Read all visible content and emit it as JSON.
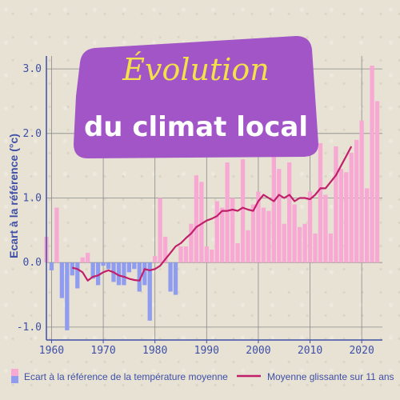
{
  "title_line1": "Évolution",
  "title_line2": "du climat local",
  "colors": {
    "axis": "#3f4fa8",
    "grid": "#8a8a8a",
    "positive_bar": "#f7a8d3",
    "negative_bar": "#8f9cf0",
    "rolling_line": "#c21f6a",
    "title_bg": "#a155c7",
    "title_top": "#f3e14a",
    "title_bottom": "#ffffff"
  },
  "legend": {
    "bars_label": "Ecart à la référence de la température moyenne",
    "line_label": "Moyenne glissante sur 11 ans"
  },
  "chart_data": {
    "type": "bar",
    "title": "Évolution du climat local",
    "xlabel": "",
    "ylabel": "Ecart à la référence (°c)",
    "xlim": [
      1959,
      2024
    ],
    "ylim": [
      -1.2,
      3.2
    ],
    "yticks": [
      -1.0,
      0.0,
      1.0,
      2.0,
      3.0
    ],
    "ytick_labels": [
      "-1.0",
      "0.0",
      "1.0",
      "2.0",
      "3.0"
    ],
    "xticks": [
      1960,
      1970,
      1980,
      1990,
      2000,
      2010,
      2020
    ],
    "x": [
      1959,
      1960,
      1961,
      1962,
      1963,
      1964,
      1965,
      1966,
      1967,
      1968,
      1969,
      1970,
      1971,
      1972,
      1973,
      1974,
      1975,
      1976,
      1977,
      1978,
      1979,
      1980,
      1981,
      1982,
      1983,
      1984,
      1985,
      1986,
      1987,
      1988,
      1989,
      1990,
      1991,
      1992,
      1993,
      1994,
      1995,
      1996,
      1997,
      1998,
      1999,
      2000,
      2001,
      2002,
      2003,
      2004,
      2005,
      2006,
      2007,
      2008,
      2009,
      2010,
      2011,
      2012,
      2013,
      2014,
      2015,
      2016,
      2017,
      2018,
      2019,
      2020,
      2021,
      2022,
      2023
    ],
    "series": [
      {
        "name": "Ecart à la référence de la température moyenne",
        "values": [
          0.4,
          -0.12,
          0.85,
          -0.55,
          -1.05,
          -0.2,
          -0.4,
          0.08,
          0.15,
          -0.25,
          -0.35,
          -0.05,
          -0.1,
          -0.3,
          -0.35,
          -0.35,
          -0.15,
          -0.1,
          -0.45,
          -0.35,
          -0.9,
          0.1,
          1.0,
          0.4,
          -0.45,
          -0.5,
          0.25,
          0.25,
          0.6,
          1.35,
          1.25,
          0.25,
          0.2,
          0.95,
          0.85,
          1.55,
          1.0,
          0.3,
          1.6,
          0.5,
          0.9,
          1.1,
          0.85,
          0.8,
          1.85,
          1.45,
          0.6,
          1.55,
          0.9,
          0.55,
          0.6,
          1.1,
          0.45,
          1.85,
          1.05,
          0.45,
          1.8,
          1.45,
          1.4,
          1.7,
          1.9,
          2.2,
          1.15,
          3.05,
          2.5
        ]
      },
      {
        "name": "Moyenne glissante sur 11 ans",
        "type": "line",
        "x": [
          1964,
          1965,
          1966,
          1967,
          1968,
          1969,
          1970,
          1971,
          1972,
          1973,
          1974,
          1975,
          1976,
          1977,
          1978,
          1979,
          1980,
          1981,
          1982,
          1983,
          1984,
          1985,
          1986,
          1987,
          1988,
          1989,
          1990,
          1991,
          1992,
          1993,
          1994,
          1995,
          1996,
          1997,
          1998,
          1999,
          2000,
          2001,
          2002,
          2003,
          2004,
          2005,
          2006,
          2007,
          2008,
          2009,
          2010,
          2011,
          2012,
          2013,
          2014,
          2015,
          2016,
          2017,
          2018
        ],
        "values": [
          -0.08,
          -0.1,
          -0.15,
          -0.28,
          -0.22,
          -0.2,
          -0.15,
          -0.12,
          -0.15,
          -0.2,
          -0.22,
          -0.25,
          -0.27,
          -0.28,
          -0.1,
          -0.12,
          -0.1,
          -0.05,
          0.05,
          0.15,
          0.25,
          0.3,
          0.38,
          0.45,
          0.55,
          0.6,
          0.65,
          0.68,
          0.72,
          0.8,
          0.8,
          0.82,
          0.8,
          0.85,
          0.82,
          0.8,
          0.95,
          1.05,
          1.0,
          0.95,
          1.05,
          1.0,
          1.05,
          0.95,
          1.0,
          1.0,
          0.98,
          1.05,
          1.15,
          1.15,
          1.25,
          1.35,
          1.5,
          1.65,
          1.8
        ]
      }
    ],
    "legend_position": "bottom"
  }
}
